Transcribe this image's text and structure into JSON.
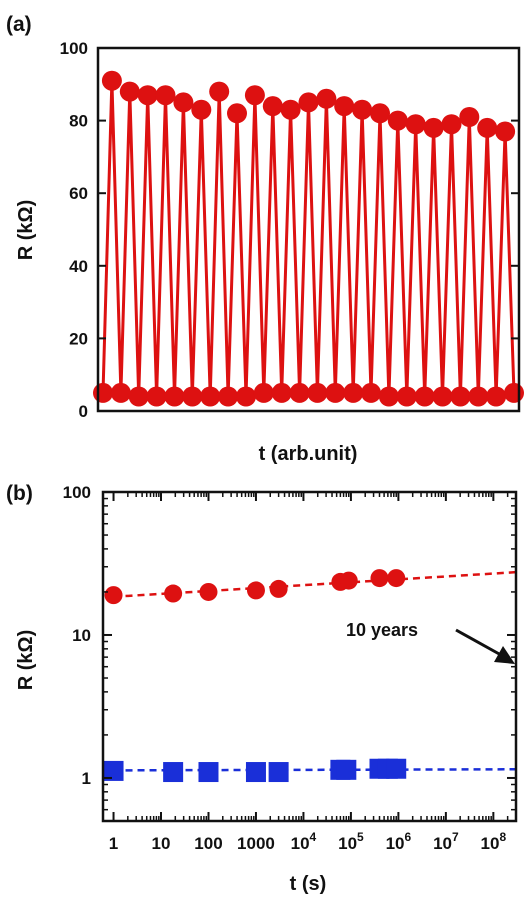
{
  "chart_data": [
    {
      "panel": "(a)",
      "type": "line",
      "xlabel": "t (arb.unit)",
      "ylabel": "R (kΩ)",
      "ylim": [
        0,
        100
      ],
      "yticks": [
        0,
        20,
        40,
        60,
        80,
        100
      ],
      "xticks": [],
      "grid": false,
      "color": "#dd1111",
      "series": [
        {
          "values": [
            5,
            91,
            5,
            88,
            4,
            87,
            4,
            87,
            4,
            85,
            4,
            83,
            4,
            88,
            4,
            82,
            4,
            87,
            5,
            84,
            5,
            83,
            5,
            85,
            5,
            86,
            5,
            84,
            5,
            83,
            5,
            82,
            4,
            80,
            4,
            79,
            4,
            78,
            4,
            79,
            4,
            81,
            4,
            78,
            4,
            77,
            5
          ]
        }
      ]
    },
    {
      "panel": "(b)",
      "type": "scatter",
      "xscale": "log",
      "yscale": "log",
      "xlabel": "t (s)",
      "ylabel": "R (kΩ)",
      "xlim": [
        0.6,
        300000000
      ],
      "ylim": [
        0.5,
        100
      ],
      "xtick_labels": [
        "1",
        "10",
        "100",
        "1000",
        "10^4",
        "10^5",
        "10^6",
        "10^7",
        "10^8"
      ],
      "ytick_labels": [
        "1",
        "10",
        "100"
      ],
      "annotation": "10 years",
      "series": [
        {
          "color": "#dd1111",
          "marker": "circle",
          "x": [
            1,
            18,
            100,
            1000,
            3000,
            60000,
            90000,
            400000,
            900000
          ],
          "y": [
            19,
            19.5,
            20,
            20.5,
            21,
            23.5,
            24,
            25,
            25
          ],
          "trend": {
            "x": [
              1,
              300000000
            ],
            "y": [
              18.5,
              27.5
            ]
          }
        },
        {
          "color": "#1a2fd8",
          "marker": "square",
          "x": [
            1,
            18,
            100,
            1000,
            3000,
            60000,
            80000,
            400000,
            600000,
            900000
          ],
          "y": [
            1.12,
            1.1,
            1.1,
            1.1,
            1.1,
            1.14,
            1.14,
            1.16,
            1.16,
            1.16
          ],
          "trend": {
            "x": [
              1,
              300000000
            ],
            "y": [
              1.13,
              1.15
            ]
          }
        }
      ]
    }
  ]
}
